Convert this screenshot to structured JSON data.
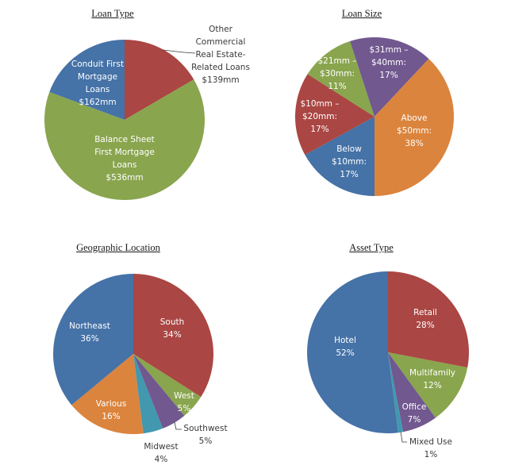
{
  "palette": {
    "blue": "#4572A7",
    "red": "#AA4643",
    "green": "#89A54E",
    "purple": "#71588F",
    "aqua": "#4198AF",
    "orange": "#DB843D"
  },
  "chart_data": [
    {
      "type": "pie",
      "title": "Loan Type",
      "unit": "$mm",
      "slices": [
        {
          "name": "Other Commercial Real Estate-Related Loans",
          "value": 139,
          "color": "#AA4643",
          "label_lines": [
            "Other",
            "Commercial",
            "Real Estate-",
            "Related Loans",
            "$139mm"
          ],
          "label_position": "outside-top-right"
        },
        {
          "name": "Balance Sheet First Mortgage Loans",
          "value": 536,
          "color": "#89A54E",
          "label_lines": [
            "Balance Sheet",
            "First Mortgage",
            "Loans",
            "$536mm"
          ],
          "label_position": "inside"
        },
        {
          "name": "Conduit First Mortgage Loans",
          "value": 162,
          "color": "#4572A7",
          "label_lines": [
            "Conduit First",
            "Mortgage",
            "Loans",
            "$162mm"
          ],
          "label_position": "inside"
        }
      ]
    },
    {
      "type": "pie",
      "title": "Loan Size",
      "unit": "%",
      "start": "bottom",
      "slices": [
        {
          "name": "Below $10mm",
          "value": 17,
          "color": "#4572A7",
          "label_lines": [
            "Below",
            "$10mm:",
            "17%"
          ],
          "label_position": "inside"
        },
        {
          "name": "$10mm – $20mm",
          "value": 17,
          "color": "#AA4643",
          "label_lines": [
            "$10mm –",
            "$20mm:",
            "17%"
          ],
          "label_position": "inside"
        },
        {
          "name": "$21mm – $30mm",
          "value": 11,
          "color": "#89A54E",
          "label_lines": [
            "$21mm –",
            "$30mm:",
            "11%"
          ],
          "label_position": "inside"
        },
        {
          "name": "$31mm – $40mm",
          "value": 17,
          "color": "#71588F",
          "label_lines": [
            "$31mm –",
            "$40mm:",
            "17%"
          ],
          "label_position": "inside"
        },
        {
          "name": "Above $50mm",
          "value": 38,
          "color": "#DB843D",
          "label_lines": [
            "Above",
            "$50mm:",
            "38%"
          ],
          "label_position": "inside"
        }
      ]
    },
    {
      "type": "pie",
      "title": "Geographic Location",
      "unit": "%",
      "slices": [
        {
          "name": "South",
          "value": 34,
          "color": "#AA4643",
          "label_lines": [
            "South",
            "34%"
          ],
          "label_position": "inside"
        },
        {
          "name": "West",
          "value": 5,
          "color": "#89A54E",
          "label_lines": [
            "West",
            "5%"
          ],
          "label_position": "inside"
        },
        {
          "name": "Southwest",
          "value": 5,
          "color": "#71588F",
          "label_lines": [
            "Southwest",
            "5%"
          ],
          "label_position": "outside"
        },
        {
          "name": "Midwest",
          "value": 4,
          "color": "#4198AF",
          "label_lines": [
            "Midwest",
            "4%"
          ],
          "label_position": "outside"
        },
        {
          "name": "Various",
          "value": 16,
          "color": "#DB843D",
          "label_lines": [
            "Various",
            "16%"
          ],
          "label_position": "inside"
        },
        {
          "name": "Northeast",
          "value": 36,
          "color": "#4572A7",
          "label_lines": [
            "Northeast",
            "36%"
          ],
          "label_position": "inside"
        }
      ]
    },
    {
      "type": "pie",
      "title": "Asset Type",
      "unit": "%",
      "slices": [
        {
          "name": "Retail",
          "value": 28,
          "color": "#AA4643",
          "label_lines": [
            "Retail",
            "28%"
          ],
          "label_position": "inside"
        },
        {
          "name": "Multifamily",
          "value": 12,
          "color": "#89A54E",
          "label_lines": [
            "Multifamily",
            "12%"
          ],
          "label_position": "inside"
        },
        {
          "name": "Office",
          "value": 7,
          "color": "#71588F",
          "label_lines": [
            "Office",
            "7%"
          ],
          "label_position": "inside"
        },
        {
          "name": "Mixed Use",
          "value": 1,
          "color": "#4198AF",
          "label_lines": [
            "Mixed Use",
            "1%"
          ],
          "label_position": "outside"
        },
        {
          "name": "Hotel",
          "value": 52,
          "color": "#4572A7",
          "label_lines": [
            "Hotel",
            "52%"
          ],
          "label_position": "inside"
        }
      ]
    }
  ]
}
